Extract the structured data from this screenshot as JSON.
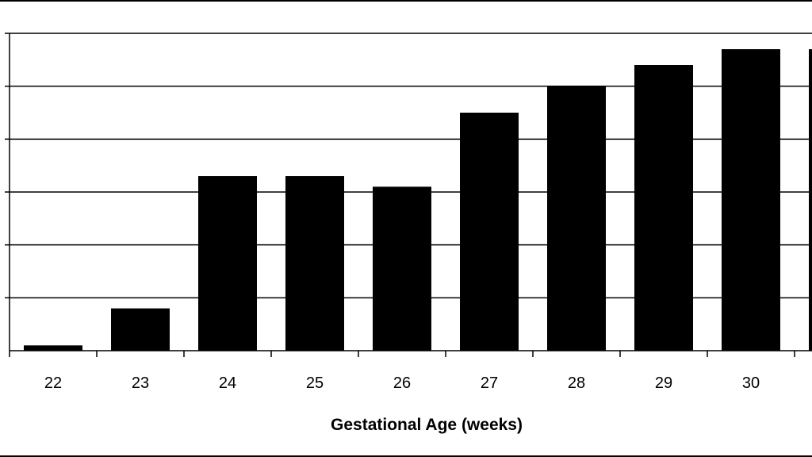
{
  "chart_data": {
    "type": "bar",
    "title": "",
    "xlabel": "Gestational Age (weeks)",
    "ylabel": "",
    "categories": [
      "22",
      "23",
      "24",
      "25",
      "26",
      "27",
      "28",
      "29",
      "30",
      ""
    ],
    "values": [
      1,
      8,
      33,
      33,
      31,
      45,
      50,
      54,
      57,
      57
    ],
    "ylim": [
      0,
      60
    ],
    "grid": true,
    "legend": "none",
    "colors": {
      "bar": "#000000",
      "grid": "#000000",
      "background": "#ffffff"
    }
  }
}
